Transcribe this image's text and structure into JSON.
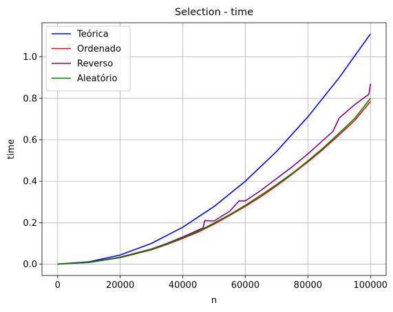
{
  "chart_data": {
    "type": "line",
    "title": "Selection - time",
    "xlabel": "n",
    "ylabel": "time",
    "xlim": [
      -5000,
      105000
    ],
    "ylim": [
      -0.055,
      1.165
    ],
    "xticks": [
      0,
      20000,
      40000,
      60000,
      80000,
      100000
    ],
    "xtick_labels": [
      "0",
      "20000",
      "40000",
      "60000",
      "80000",
      "100000"
    ],
    "yticks": [
      0.0,
      0.2,
      0.4,
      0.6,
      0.8,
      1.0
    ],
    "ytick_labels": [
      "0.0",
      "0.2",
      "0.4",
      "0.6",
      "0.8",
      "1.0"
    ],
    "grid": true,
    "legend_position": "top-left",
    "series": [
      {
        "name": "Teórica",
        "color": "#0000ff",
        "x": [
          0,
          10000,
          20000,
          30000,
          40000,
          50000,
          60000,
          70000,
          80000,
          90000,
          100000
        ],
        "y": [
          0.0,
          0.011,
          0.044,
          0.1,
          0.178,
          0.278,
          0.4,
          0.544,
          0.711,
          0.9,
          1.111
        ]
      },
      {
        "name": "Ordenado",
        "color": "#ff0000",
        "x": [
          0,
          10000,
          20000,
          30000,
          35000,
          40000,
          45000,
          50000,
          55000,
          60000,
          65000,
          70000,
          75000,
          80000,
          85000,
          90000,
          95000,
          100000
        ],
        "y": [
          0.0,
          0.008,
          0.031,
          0.069,
          0.095,
          0.124,
          0.155,
          0.193,
          0.235,
          0.279,
          0.326,
          0.378,
          0.434,
          0.493,
          0.556,
          0.624,
          0.694,
          0.785
        ]
      },
      {
        "name": "Reverso",
        "color": "#800080",
        "x": [
          0,
          10000,
          20000,
          30000,
          35000,
          40000,
          45000,
          46500,
          47000,
          50000,
          55000,
          58000,
          60000,
          65000,
          70000,
          75000,
          80000,
          85000,
          88000,
          90000,
          95000,
          99500,
          100000
        ],
        "y": [
          0.0,
          0.009,
          0.034,
          0.073,
          0.1,
          0.131,
          0.165,
          0.175,
          0.21,
          0.208,
          0.255,
          0.305,
          0.305,
          0.356,
          0.413,
          0.47,
          0.532,
          0.6,
          0.64,
          0.705,
          0.77,
          0.82,
          0.87
        ]
      },
      {
        "name": "Aleatório",
        "color": "#008000",
        "x": [
          0,
          10000,
          20000,
          30000,
          35000,
          40000,
          45000,
          50000,
          55000,
          60000,
          65000,
          70000,
          75000,
          80000,
          85000,
          90000,
          95000,
          100000
        ],
        "y": [
          0.0,
          0.008,
          0.032,
          0.071,
          0.097,
          0.127,
          0.159,
          0.198,
          0.239,
          0.284,
          0.333,
          0.384,
          0.438,
          0.498,
          0.562,
          0.632,
          0.704,
          0.8
        ]
      }
    ]
  }
}
